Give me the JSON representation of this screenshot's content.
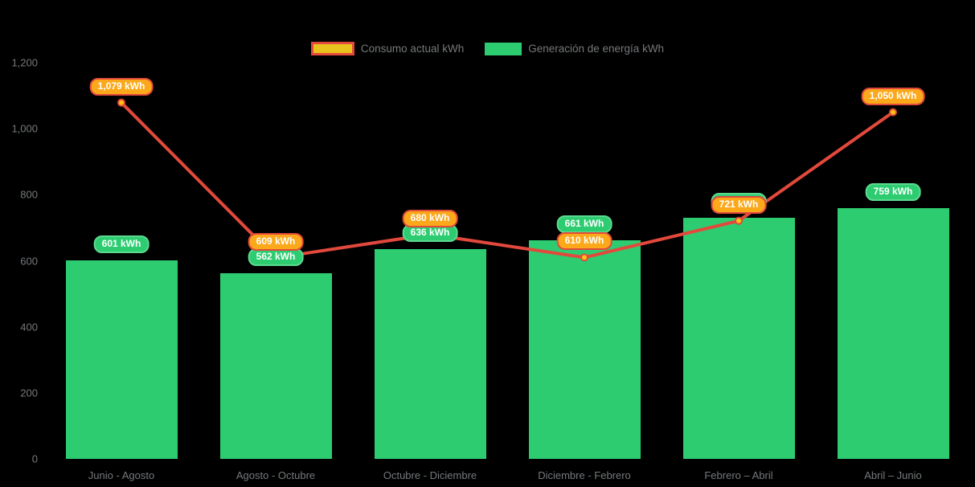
{
  "chart_data": {
    "type": "combo",
    "title": "",
    "categories": [
      "Junio - Agosto",
      "Agosto - Octubre",
      "Octubre - Diciembre",
      "Diciembre - Febrero",
      "Febrero – Abril",
      "Abril – Junio"
    ],
    "series": [
      {
        "name": "Consumo actual kWh",
        "type": "line",
        "values": [
          1079,
          609,
          680,
          610,
          721,
          1050
        ],
        "point_labels": [
          "1,079 kWh",
          "609 kWh",
          "680 kWh",
          "610 kWh",
          "721 kWh",
          "1,050 kWh"
        ]
      },
      {
        "name": "Generación de energía kWh",
        "type": "bar",
        "values": [
          601,
          562,
          636,
          661,
          731,
          759
        ],
        "point_labels": [
          "601 kWh",
          "562 kWh",
          "636 kWh",
          "661 kWh",
          "731 kWh",
          "759 kWh"
        ]
      }
    ],
    "ylim": [
      0,
      1200
    ],
    "yticks": [
      {
        "value": 0,
        "label": "0"
      },
      {
        "value": 200,
        "label": "200"
      },
      {
        "value": 400,
        "label": "400"
      },
      {
        "value": 600,
        "label": "600"
      },
      {
        "value": 800,
        "label": "800"
      },
      {
        "value": 1000,
        "label": "1,000"
      },
      {
        "value": 1200,
        "label": "1,200"
      }
    ],
    "legend_position": "top",
    "grid": false,
    "colors": {
      "background": "#000000",
      "bar": "#2ECC71",
      "bar_label_bg": "#2ECC71",
      "bar_label_border": "#5CD98F",
      "line": "#E2493C",
      "marker_fill": "#FFC414",
      "marker_border": "#E2493C",
      "line_label_bg": "#FBA81B",
      "line_label_border": "#E2493C",
      "legend_swatch_consumo_fill": "#E9C21D",
      "legend_swatch_consumo_border": "#E2493C",
      "legend_swatch_generacion": "#2ECC71",
      "axis_text": "#75787B",
      "label_text": "#FFFFFF"
    }
  }
}
